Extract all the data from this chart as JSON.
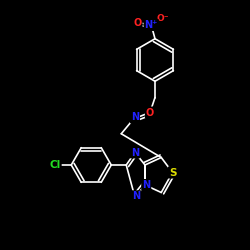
{
  "bg_color": "#000000",
  "bond_color": "#ffffff",
  "atom_colors": {
    "O": "#ff2222",
    "N": "#2222ff",
    "S": "#dddd00",
    "Cl": "#22dd22",
    "C": "#ffffff"
  },
  "lw": 1.2,
  "fs": 7.0
}
